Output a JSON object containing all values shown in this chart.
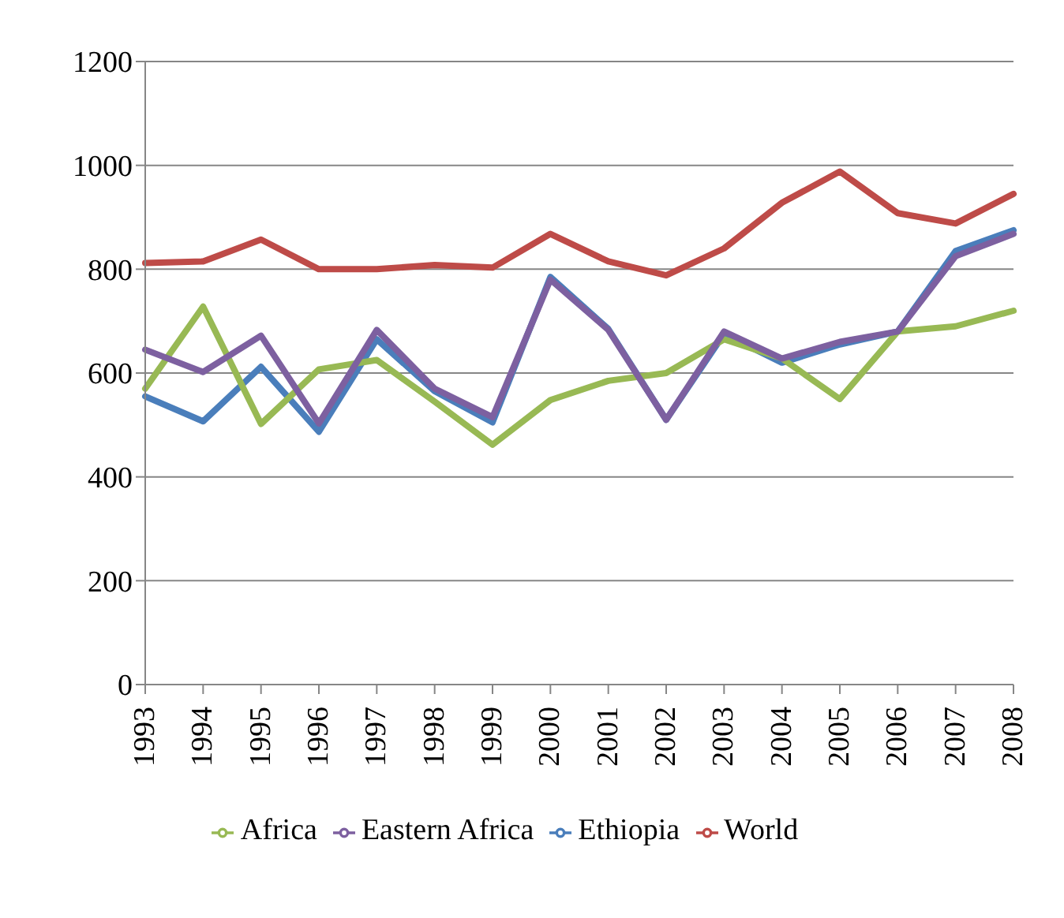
{
  "chart_data": {
    "type": "line",
    "categories": [
      "1993",
      "1994",
      "1995",
      "1996",
      "1997",
      "1998",
      "1999",
      "2000",
      "2001",
      "2002",
      "2003",
      "2004",
      "2005",
      "2006",
      "2007",
      "2008"
    ],
    "series": [
      {
        "name": "Ethiopia",
        "color": "#4a7ebb",
        "values": [
          555,
          507,
          612,
          487,
          665,
          565,
          505,
          785,
          685,
          510,
          675,
          620,
          655,
          680,
          835,
          875
        ]
      },
      {
        "name": "World",
        "color": "#be4b48",
        "values": [
          812,
          815,
          857,
          800,
          800,
          808,
          803,
          868,
          815,
          788,
          840,
          928,
          988,
          908,
          888,
          945
        ]
      },
      {
        "name": "Africa",
        "color": "#98b954",
        "values": [
          570,
          728,
          502,
          607,
          625,
          545,
          462,
          548,
          585,
          600,
          665,
          628,
          550,
          680,
          690,
          720
        ]
      },
      {
        "name": "Eastern Africa",
        "color": "#7d60a0",
        "values": [
          645,
          602,
          672,
          503,
          683,
          570,
          515,
          780,
          683,
          510,
          680,
          628,
          660,
          680,
          825,
          868
        ]
      }
    ],
    "ylim": [
      0,
      1200
    ],
    "yticks": [
      0,
      200,
      400,
      600,
      800,
      1000,
      1200
    ],
    "grid": "y",
    "legend": "bottom",
    "marker": "none",
    "line_style": "solid"
  }
}
